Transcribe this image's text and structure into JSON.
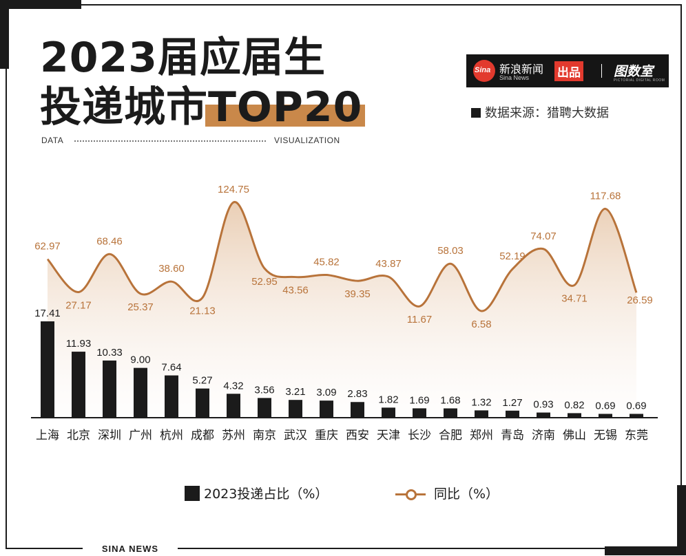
{
  "title": {
    "line1": "2023届应届生",
    "line2_prefix": "投递城市",
    "line2_highlight": "TOP20"
  },
  "tags": {
    "left": "DATA",
    "right": "VISUALIZATION"
  },
  "brand": {
    "name": "新浪新闻",
    "name_en": "Sina News",
    "logo_text": "Sina",
    "badge": "出品",
    "partner": "图数室",
    "partner_sub": "PICTORIAL DIGITAL ROOM"
  },
  "source": "数据来源：猎聘大数据",
  "footer": "SINA NEWS",
  "colors": {
    "bar": "#1b1b1b",
    "line": "#b8733a",
    "highlight": "#c9884a",
    "label_line": "#b8733a"
  },
  "chart_data": {
    "type": "bar+line",
    "categories": [
      "上海",
      "北京",
      "深圳",
      "广州",
      "杭州",
      "成都",
      "苏州",
      "南京",
      "武汉",
      "重庆",
      "西安",
      "天津",
      "长沙",
      "合肥",
      "郑州",
      "青岛",
      "济南",
      "佛山",
      "无锡",
      "东莞"
    ],
    "series": [
      {
        "name": "2023投递占比（%）",
        "type": "bar",
        "values": [
          17.41,
          11.93,
          10.33,
          9.0,
          7.64,
          5.27,
          4.32,
          3.56,
          3.21,
          3.09,
          2.83,
          1.82,
          1.69,
          1.68,
          1.32,
          1.27,
          0.93,
          0.82,
          0.69,
          0.69
        ],
        "labels": [
          "17.41",
          "11.93",
          "10.33",
          "9.00",
          "7.64",
          "5.27",
          "4.32",
          "3.56",
          "3.21",
          "3.09",
          "2.83",
          "1.82",
          "1.69",
          "1.68",
          "1.32",
          "1.27",
          "0.93",
          "0.82",
          "0.69",
          "0.69"
        ]
      },
      {
        "name": "同比（%）",
        "type": "line",
        "values": [
          62.97,
          27.17,
          68.46,
          25.37,
          38.6,
          21.13,
          124.75,
          52.95,
          43.56,
          45.82,
          39.35,
          43.87,
          11.67,
          58.03,
          6.58,
          52.19,
          74.07,
          34.71,
          117.68,
          26.59
        ],
        "labels": [
          "62.97",
          "27.17",
          "68.46",
          "25.37",
          "38.60",
          "21.13",
          "124.75",
          "52.95",
          "43.56",
          "45.82",
          "39.35",
          "43.87",
          "11.67",
          "58.03",
          "6.58",
          "52.19",
          "74.07",
          "34.71",
          "117.68",
          "26.59"
        ]
      }
    ],
    "legend_position": "bottom",
    "grid": false
  }
}
